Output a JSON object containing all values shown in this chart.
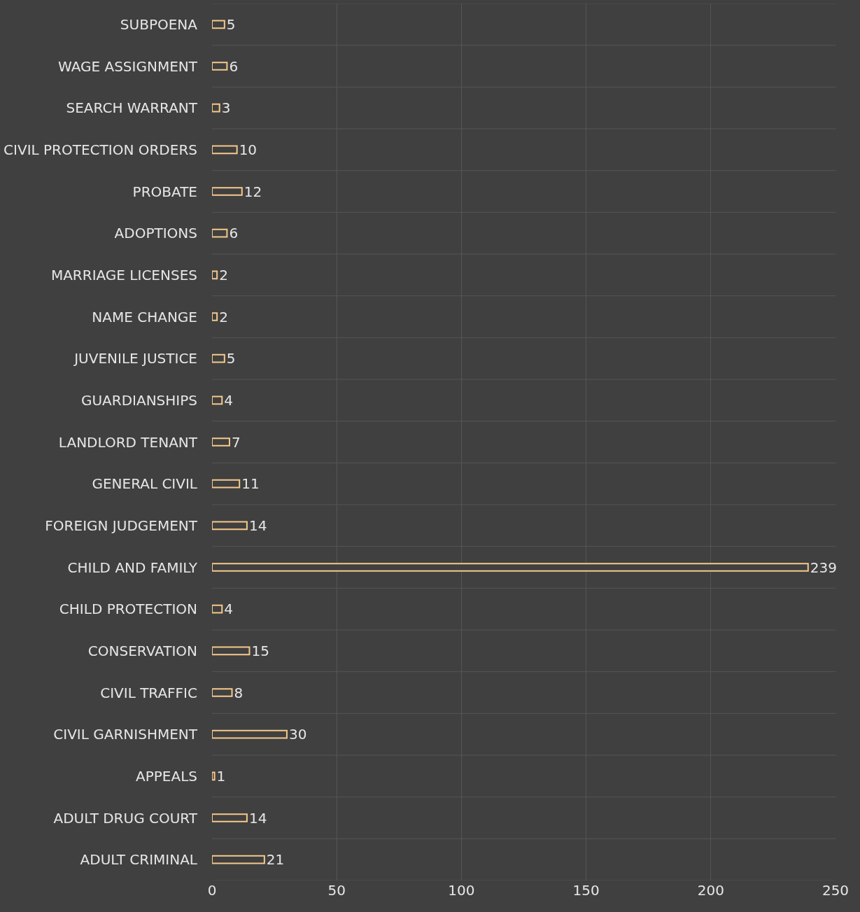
{
  "chart_data": {
    "type": "bar",
    "orientation": "horizontal",
    "categories": [
      "SUBPOENA",
      "WAGE ASSIGNMENT",
      "SEARCH WARRANT",
      "CIVIL PROTECTION ORDERS",
      "PROBATE",
      "ADOPTIONS",
      "MARRIAGE LICENSES",
      "NAME CHANGE",
      "JUVENILE JUSTICE",
      "GUARDIANSHIPS",
      "LANDLORD TENANT",
      "GENERAL CIVIL",
      "FOREIGN JUDGEMENT",
      "CHILD AND FAMILY",
      "CHILD PROTECTION",
      "CONSERVATION",
      "CIVIL TRAFFIC",
      "CIVIL GARNISHMENT",
      "APPEALS",
      "ADULT DRUG COURT",
      "ADULT CRIMINAL"
    ],
    "values": [
      5,
      6,
      3,
      10,
      12,
      6,
      2,
      2,
      5,
      4,
      7,
      11,
      14,
      239,
      4,
      15,
      8,
      30,
      1,
      14,
      21
    ],
    "data_labels": true,
    "color": "#f5c98a",
    "xlim": [
      0,
      250
    ],
    "xticks": [
      0,
      50,
      100,
      150,
      200,
      250
    ],
    "grid": true
  }
}
